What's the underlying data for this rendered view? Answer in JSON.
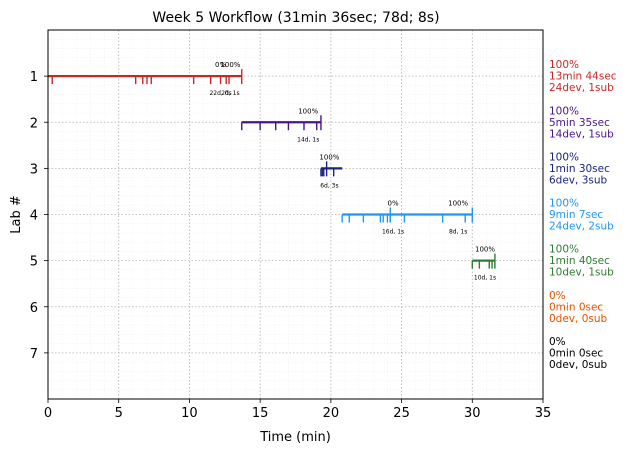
{
  "chart_data": {
    "type": "timeline",
    "title": "Week 5 Workflow (31min 36sec; 78d; 8s)",
    "xlabel": "Time (min)",
    "ylabel": "Lab #",
    "xlim": [
      0,
      35
    ],
    "ylim": [
      8,
      0
    ],
    "xticks": [
      0,
      5,
      10,
      15,
      20,
      25,
      30,
      35
    ],
    "yticks": [
      1,
      2,
      3,
      4,
      5,
      6,
      7
    ],
    "grid": true,
    "minor_grid": true,
    "labs": [
      {
        "lab": 1,
        "color": "#c62828",
        "start": 0.0,
        "end": 13.7,
        "ticks": [
          0.3,
          6.2,
          6.7,
          7.0,
          7.3,
          10.3,
          11.5,
          12.2,
          12.6,
          12.8
        ],
        "submits": [
          13.7
        ],
        "annotations": [
          {
            "x": 12.2,
            "pct": "0%",
            "counts": "22d, 0s"
          },
          {
            "x": 12.9,
            "pct": "100%",
            "counts": "2d, 1s"
          }
        ],
        "summary": [
          "100%",
          "13min 44sec",
          "24dev, 1sub"
        ]
      },
      {
        "lab": 2,
        "color": "#4a148c",
        "start": 13.7,
        "end": 19.3,
        "ticks": [
          13.7,
          15.0,
          16.1,
          17.0,
          18.1,
          19.0
        ],
        "submits": [
          19.3
        ],
        "annotations": [
          {
            "x": 18.4,
            "pct": "100%",
            "counts": "14d, 1s"
          }
        ],
        "summary": [
          "100%",
          "5min 35sec",
          "14dev, 1sub"
        ]
      },
      {
        "lab": 3,
        "color": "#1a237e",
        "start": 19.3,
        "end": 20.8,
        "ticks": [
          19.3,
          19.4,
          19.5,
          20.2
        ],
        "submits": [
          19.7
        ],
        "annotations": [
          {
            "x": 19.9,
            "pct": "100%",
            "counts": "6d, 3s"
          }
        ],
        "summary": [
          "100%",
          "1min 30sec",
          "6dev, 3sub"
        ]
      },
      {
        "lab": 4,
        "color": "#2196f3",
        "start": 20.8,
        "end": 30.0,
        "ticks": [
          20.8,
          21.3,
          22.3,
          23.5,
          23.7,
          24.0,
          24.2,
          25.2,
          27.9,
          29.5
        ],
        "submits": [
          24.2,
          30.0
        ],
        "annotations": [
          {
            "x": 24.4,
            "pct": "0%",
            "counts": "16d, 1s"
          },
          {
            "x": 29.0,
            "pct": "100%",
            "counts": "8d, 1s"
          }
        ],
        "summary": [
          "100%",
          "9min 7sec",
          "24dev, 2sub"
        ]
      },
      {
        "lab": 5,
        "color": "#2e7d32",
        "start": 30.0,
        "end": 31.6,
        "ticks": [
          30.0,
          30.5,
          31.2,
          31.4
        ],
        "submits": [
          31.6
        ],
        "annotations": [
          {
            "x": 30.9,
            "pct": "100%",
            "counts": "10d, 1s"
          }
        ],
        "summary": [
          "100%",
          "1min 40sec",
          "10dev, 1sub"
        ]
      },
      {
        "lab": 6,
        "color": "#e65100",
        "summary": [
          "0%",
          "0min 0sec",
          "0dev, 0sub"
        ]
      },
      {
        "lab": 7,
        "color": "#000000",
        "summary": [
          "0%",
          "0min 0sec",
          "0dev, 0sub"
        ]
      }
    ]
  }
}
